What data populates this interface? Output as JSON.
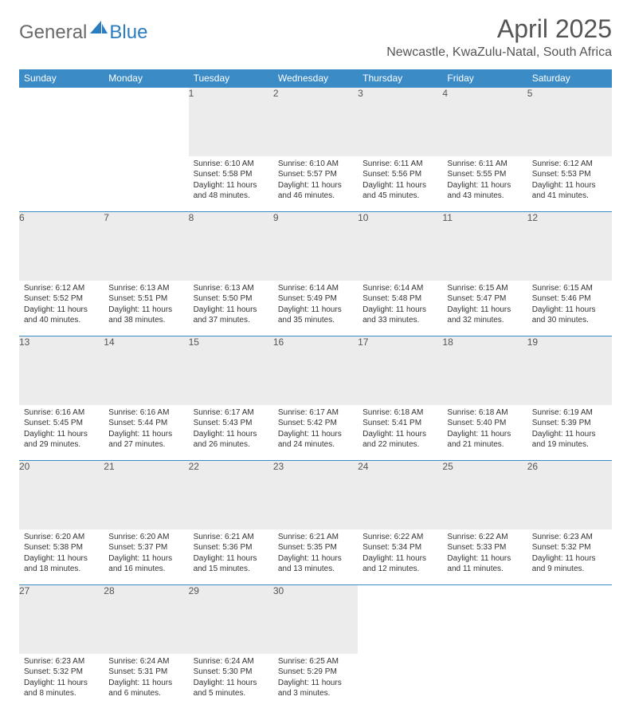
{
  "brand": {
    "text1": "General",
    "text2": "Blue",
    "icon_color": "#2a7dc0"
  },
  "title": "April 2025",
  "location": "Newcastle, KwaZulu-Natal, South Africa",
  "colors": {
    "header_bg": "#3b8bc6",
    "header_text": "#ffffff",
    "daynum_bg": "#ececec",
    "border": "#3b8bc6",
    "text": "#333333",
    "title_text": "#555555"
  },
  "day_headers": [
    "Sunday",
    "Monday",
    "Tuesday",
    "Wednesday",
    "Thursday",
    "Friday",
    "Saturday"
  ],
  "weeks": [
    [
      null,
      null,
      {
        "n": "1",
        "sr": "Sunrise: 6:10 AM",
        "ss": "Sunset: 5:58 PM",
        "dl": "Daylight: 11 hours and 48 minutes."
      },
      {
        "n": "2",
        "sr": "Sunrise: 6:10 AM",
        "ss": "Sunset: 5:57 PM",
        "dl": "Daylight: 11 hours and 46 minutes."
      },
      {
        "n": "3",
        "sr": "Sunrise: 6:11 AM",
        "ss": "Sunset: 5:56 PM",
        "dl": "Daylight: 11 hours and 45 minutes."
      },
      {
        "n": "4",
        "sr": "Sunrise: 6:11 AM",
        "ss": "Sunset: 5:55 PM",
        "dl": "Daylight: 11 hours and 43 minutes."
      },
      {
        "n": "5",
        "sr": "Sunrise: 6:12 AM",
        "ss": "Sunset: 5:53 PM",
        "dl": "Daylight: 11 hours and 41 minutes."
      }
    ],
    [
      {
        "n": "6",
        "sr": "Sunrise: 6:12 AM",
        "ss": "Sunset: 5:52 PM",
        "dl": "Daylight: 11 hours and 40 minutes."
      },
      {
        "n": "7",
        "sr": "Sunrise: 6:13 AM",
        "ss": "Sunset: 5:51 PM",
        "dl": "Daylight: 11 hours and 38 minutes."
      },
      {
        "n": "8",
        "sr": "Sunrise: 6:13 AM",
        "ss": "Sunset: 5:50 PM",
        "dl": "Daylight: 11 hours and 37 minutes."
      },
      {
        "n": "9",
        "sr": "Sunrise: 6:14 AM",
        "ss": "Sunset: 5:49 PM",
        "dl": "Daylight: 11 hours and 35 minutes."
      },
      {
        "n": "10",
        "sr": "Sunrise: 6:14 AM",
        "ss": "Sunset: 5:48 PM",
        "dl": "Daylight: 11 hours and 33 minutes."
      },
      {
        "n": "11",
        "sr": "Sunrise: 6:15 AM",
        "ss": "Sunset: 5:47 PM",
        "dl": "Daylight: 11 hours and 32 minutes."
      },
      {
        "n": "12",
        "sr": "Sunrise: 6:15 AM",
        "ss": "Sunset: 5:46 PM",
        "dl": "Daylight: 11 hours and 30 minutes."
      }
    ],
    [
      {
        "n": "13",
        "sr": "Sunrise: 6:16 AM",
        "ss": "Sunset: 5:45 PM",
        "dl": "Daylight: 11 hours and 29 minutes."
      },
      {
        "n": "14",
        "sr": "Sunrise: 6:16 AM",
        "ss": "Sunset: 5:44 PM",
        "dl": "Daylight: 11 hours and 27 minutes."
      },
      {
        "n": "15",
        "sr": "Sunrise: 6:17 AM",
        "ss": "Sunset: 5:43 PM",
        "dl": "Daylight: 11 hours and 26 minutes."
      },
      {
        "n": "16",
        "sr": "Sunrise: 6:17 AM",
        "ss": "Sunset: 5:42 PM",
        "dl": "Daylight: 11 hours and 24 minutes."
      },
      {
        "n": "17",
        "sr": "Sunrise: 6:18 AM",
        "ss": "Sunset: 5:41 PM",
        "dl": "Daylight: 11 hours and 22 minutes."
      },
      {
        "n": "18",
        "sr": "Sunrise: 6:18 AM",
        "ss": "Sunset: 5:40 PM",
        "dl": "Daylight: 11 hours and 21 minutes."
      },
      {
        "n": "19",
        "sr": "Sunrise: 6:19 AM",
        "ss": "Sunset: 5:39 PM",
        "dl": "Daylight: 11 hours and 19 minutes."
      }
    ],
    [
      {
        "n": "20",
        "sr": "Sunrise: 6:20 AM",
        "ss": "Sunset: 5:38 PM",
        "dl": "Daylight: 11 hours and 18 minutes."
      },
      {
        "n": "21",
        "sr": "Sunrise: 6:20 AM",
        "ss": "Sunset: 5:37 PM",
        "dl": "Daylight: 11 hours and 16 minutes."
      },
      {
        "n": "22",
        "sr": "Sunrise: 6:21 AM",
        "ss": "Sunset: 5:36 PM",
        "dl": "Daylight: 11 hours and 15 minutes."
      },
      {
        "n": "23",
        "sr": "Sunrise: 6:21 AM",
        "ss": "Sunset: 5:35 PM",
        "dl": "Daylight: 11 hours and 13 minutes."
      },
      {
        "n": "24",
        "sr": "Sunrise: 6:22 AM",
        "ss": "Sunset: 5:34 PM",
        "dl": "Daylight: 11 hours and 12 minutes."
      },
      {
        "n": "25",
        "sr": "Sunrise: 6:22 AM",
        "ss": "Sunset: 5:33 PM",
        "dl": "Daylight: 11 hours and 11 minutes."
      },
      {
        "n": "26",
        "sr": "Sunrise: 6:23 AM",
        "ss": "Sunset: 5:32 PM",
        "dl": "Daylight: 11 hours and 9 minutes."
      }
    ],
    [
      {
        "n": "27",
        "sr": "Sunrise: 6:23 AM",
        "ss": "Sunset: 5:32 PM",
        "dl": "Daylight: 11 hours and 8 minutes."
      },
      {
        "n": "28",
        "sr": "Sunrise: 6:24 AM",
        "ss": "Sunset: 5:31 PM",
        "dl": "Daylight: 11 hours and 6 minutes."
      },
      {
        "n": "29",
        "sr": "Sunrise: 6:24 AM",
        "ss": "Sunset: 5:30 PM",
        "dl": "Daylight: 11 hours and 5 minutes."
      },
      {
        "n": "30",
        "sr": "Sunrise: 6:25 AM",
        "ss": "Sunset: 5:29 PM",
        "dl": "Daylight: 11 hours and 3 minutes."
      },
      null,
      null,
      null
    ]
  ]
}
